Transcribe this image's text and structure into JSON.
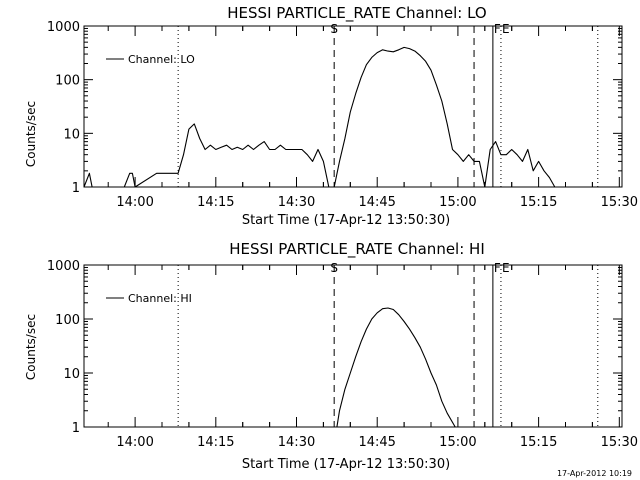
{
  "footer_timestamp": "17-Apr-2012 10:19",
  "chart_data": [
    {
      "type": "line",
      "title": "HESSI PARTICLE_RATE Channel: LO",
      "xlabel": "Start Time (17-Apr-12 13:50:30)",
      "ylabel": "Counts/sec",
      "yscale": "log",
      "ylim": [
        1,
        1000
      ],
      "xlim_minutes_after_start": [
        0,
        100
      ],
      "x_tick_labels": [
        "14:00",
        "14:15",
        "14:30",
        "14:45",
        "15:00",
        "15:15",
        "15:30"
      ],
      "x_tick_times": [
        "14:00",
        "14:15",
        "14:30",
        "14:45",
        "15:00",
        "15:15",
        "15:30"
      ],
      "y_tick_labels": [
        "1",
        "10",
        "100",
        "1000"
      ],
      "legend": {
        "position": "top-left",
        "entries": [
          "Channel: LO"
        ]
      },
      "markers": [
        {
          "time": "14:08",
          "style": "dotted",
          "label": ""
        },
        {
          "time": "14:37",
          "style": "dashed",
          "label": "S"
        },
        {
          "time": "15:03",
          "style": "dashed",
          "label": ""
        },
        {
          "time": "15:06:30",
          "style": "solid",
          "label": "F"
        },
        {
          "time": "15:08",
          "style": "dotted",
          "label": "E"
        },
        {
          "time": "15:26",
          "style": "dotted",
          "label": ""
        }
      ],
      "series": [
        {
          "name": "Channel: LO",
          "time": [
            "13:50:30",
            "13:51:30",
            "13:52",
            "13:52:30",
            "13:53",
            "13:58",
            "13:59",
            "13:59:30",
            "14:00",
            "14:04",
            "14:08",
            "14:09",
            "14:10",
            "14:11",
            "14:12",
            "14:13",
            "14:14",
            "14:15",
            "14:16",
            "14:17",
            "14:18",
            "14:19",
            "14:20",
            "14:21",
            "14:22",
            "14:23",
            "14:24",
            "14:25",
            "14:26",
            "14:27",
            "14:28",
            "14:29",
            "14:30",
            "14:31",
            "14:32",
            "14:33",
            "14:34",
            "14:35",
            "14:36",
            "14:37",
            "14:38",
            "14:39",
            "14:40",
            "14:41",
            "14:42",
            "14:43",
            "14:44",
            "14:45",
            "14:46",
            "14:47",
            "14:48",
            "14:49",
            "14:50",
            "14:51",
            "14:52",
            "14:53",
            "14:54",
            "14:55",
            "14:56",
            "14:57",
            "14:58",
            "14:59",
            "15:00",
            "15:01",
            "15:02",
            "15:03",
            "15:04",
            "15:05",
            "15:06",
            "15:07",
            "15:08",
            "15:09",
            "15:10",
            "15:11",
            "15:12",
            "15:13",
            "15:14",
            "15:15",
            "15:16",
            "15:17",
            "15:18"
          ],
          "counts": [
            1,
            1.8,
            1,
            1,
            1,
            1,
            1.8,
            1.8,
            1,
            1.8,
            1.8,
            4,
            12,
            15,
            8,
            5,
            6,
            5,
            5.5,
            6,
            5,
            5.5,
            5,
            6,
            5,
            6,
            7,
            5,
            5,
            6,
            5,
            5,
            5,
            5,
            4,
            3,
            5,
            3,
            1,
            1,
            3,
            8,
            25,
            55,
            110,
            190,
            260,
            320,
            360,
            340,
            330,
            360,
            400,
            380,
            340,
            280,
            220,
            150,
            80,
            40,
            15,
            5,
            4,
            3,
            4,
            3,
            3,
            1,
            5,
            7,
            4,
            4,
            5,
            4,
            3,
            5,
            2,
            3,
            2,
            1.5,
            1
          ]
        }
      ]
    },
    {
      "type": "line",
      "title": "HESSI PARTICLE_RATE Channel: HI",
      "xlabel": "Start Time (17-Apr-12 13:50:30)",
      "ylabel": "Counts/sec",
      "yscale": "log",
      "ylim": [
        1,
        1000
      ],
      "xlim_minutes_after_start": [
        0,
        100
      ],
      "x_tick_labels": [
        "14:00",
        "14:15",
        "14:30",
        "14:45",
        "15:00",
        "15:15",
        "15:30"
      ],
      "x_tick_times": [
        "14:00",
        "14:15",
        "14:30",
        "14:45",
        "15:00",
        "15:15",
        "15:30"
      ],
      "y_tick_labels": [
        "1",
        "10",
        "100",
        "1000"
      ],
      "legend": {
        "position": "top-left",
        "entries": [
          "Channel: HI"
        ]
      },
      "markers": [
        {
          "time": "14:08",
          "style": "dotted",
          "label": ""
        },
        {
          "time": "14:37",
          "style": "dashed",
          "label": "S"
        },
        {
          "time": "15:03",
          "style": "dashed",
          "label": ""
        },
        {
          "time": "15:06:30",
          "style": "solid",
          "label": "F"
        },
        {
          "time": "15:08",
          "style": "dotted",
          "label": "E"
        },
        {
          "time": "15:26",
          "style": "dotted",
          "label": ""
        }
      ],
      "series": [
        {
          "name": "Channel: HI",
          "time": [
            "14:37:30",
            "14:38",
            "14:39",
            "14:40",
            "14:41",
            "14:42",
            "14:43",
            "14:44",
            "14:45",
            "14:46",
            "14:47",
            "14:48",
            "14:49",
            "14:50",
            "14:51",
            "14:52",
            "14:53",
            "14:54",
            "14:55",
            "14:56",
            "14:57",
            "14:58",
            "14:59:30"
          ],
          "counts": [
            1,
            2,
            5,
            10,
            20,
            38,
            65,
            100,
            130,
            155,
            160,
            150,
            120,
            90,
            65,
            45,
            30,
            18,
            10,
            6,
            3,
            1.8,
            1
          ]
        }
      ]
    }
  ]
}
